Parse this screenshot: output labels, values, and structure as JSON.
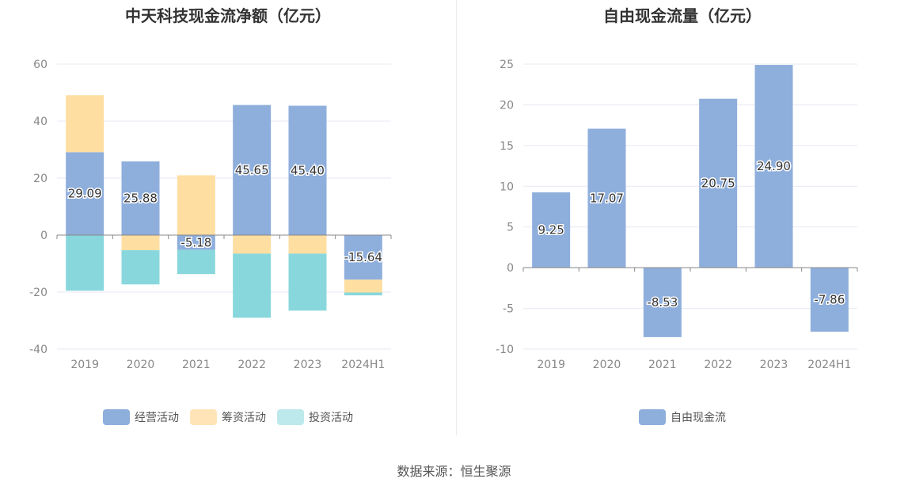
{
  "chart_data": [
    {
      "type": "bar",
      "stacked": true,
      "title": "中天科技现金流净额（亿元）",
      "categories": [
        "2019",
        "2020",
        "2021",
        "2022",
        "2023",
        "2024H1"
      ],
      "ylim": [
        -40,
        60
      ],
      "yticks": [
        "60",
        "40",
        "20",
        "0",
        "-20",
        "-40"
      ],
      "series": [
        {
          "name": "经营活动",
          "color": "#8eaedc",
          "values": [
            29.09,
            25.88,
            -5.18,
            45.65,
            45.4,
            -15.64
          ]
        },
        {
          "name": "筹资活动",
          "color": "#ffdea2",
          "values": [
            20.0,
            -5.3,
            21.0,
            -6.5,
            -6.5,
            -4.5
          ]
        },
        {
          "name": "投资活动",
          "color": "#88d7dc",
          "values": [
            -19.5,
            -12.0,
            -8.5,
            -22.5,
            -20.0,
            -1.0
          ]
        }
      ],
      "data_labels": [
        "29.09",
        "25.88",
        "-5.18",
        "45.65",
        "45.40",
        "-15.64"
      ],
      "legend": {
        "position": "bottom",
        "entries": [
          "经营活动",
          "筹资活动",
          "投资活动"
        ],
        "colors": [
          "#8eaedc",
          "#ffe4b8",
          "#bde9ec"
        ]
      }
    },
    {
      "type": "bar",
      "title": "自由现金流量（亿元）",
      "categories": [
        "2019",
        "2020",
        "2021",
        "2022",
        "2023",
        "2024H1"
      ],
      "ylim": [
        -10,
        25
      ],
      "yticks": [
        "25",
        "20",
        "15",
        "10",
        "5",
        "0",
        "-5",
        "-10"
      ],
      "series": [
        {
          "name": "自由现金流",
          "color": "#8eaedc",
          "values": [
            9.25,
            17.07,
            -8.53,
            20.75,
            24.9,
            -7.86
          ]
        }
      ],
      "data_labels": [
        "9.25",
        "17.07",
        "-8.53",
        "20.75",
        "24.90",
        "-7.86"
      ],
      "legend": {
        "position": "bottom",
        "entries": [
          "自由现金流"
        ],
        "colors": [
          "#8eaedc"
        ]
      }
    }
  ],
  "footer": {
    "source": "数据来源：恒生聚源"
  }
}
